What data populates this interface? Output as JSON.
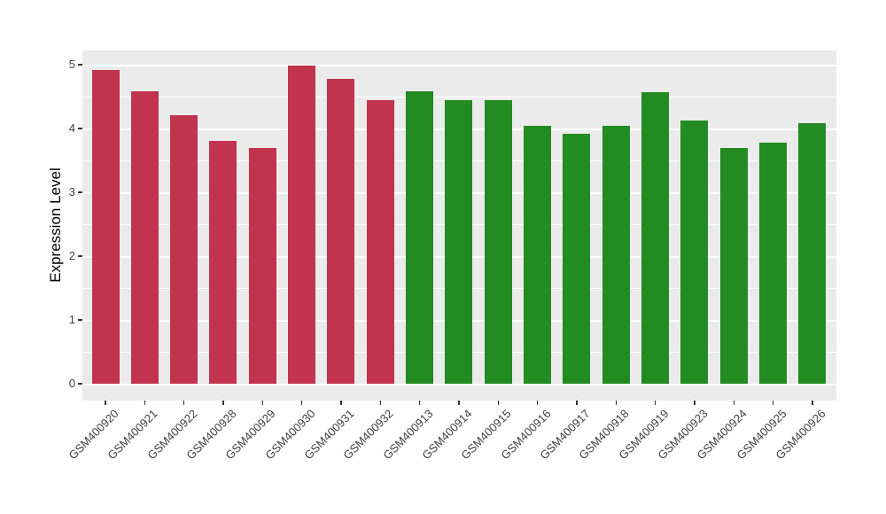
{
  "chart_data": {
    "type": "bar",
    "title": "",
    "xlabel": "",
    "ylabel": "Expression Level",
    "ylim": [
      0,
      5.22
    ],
    "yticks": [
      0,
      1,
      2,
      3,
      4,
      5
    ],
    "yticks_minor": [
      0.5,
      1.5,
      2.5,
      3.5,
      4.5
    ],
    "grid": "on",
    "legend_position": "none",
    "categories": [
      "GSM400920",
      "GSM400921",
      "GSM400922",
      "GSM400928",
      "GSM400929",
      "GSM400930",
      "GSM400931",
      "GSM400932",
      "GSM400913",
      "GSM400914",
      "GSM400915",
      "GSM400916",
      "GSM400917",
      "GSM400918",
      "GSM400919",
      "GSM400923",
      "GSM400924",
      "GSM400925",
      "GSM400926"
    ],
    "values": [
      4.91,
      4.58,
      4.21,
      3.8,
      3.7,
      4.98,
      4.78,
      4.44,
      4.59,
      4.44,
      4.45,
      4.04,
      3.92,
      4.04,
      4.57,
      4.13,
      3.69,
      3.78,
      4.08
    ],
    "groups": [
      "group1",
      "group1",
      "group1",
      "group1",
      "group1",
      "group1",
      "group1",
      "group1",
      "group2",
      "group2",
      "group2",
      "group2",
      "group2",
      "group2",
      "group2",
      "group2",
      "group2",
      "group2",
      "group2"
    ],
    "colors": {
      "group1": "#C2334D",
      "group2": "#228B22"
    },
    "panel_background": "#EBEBEB",
    "gridline_color": "#FFFFFF",
    "tick_mark_color": "#333333",
    "tick_label_color": "#404040"
  }
}
